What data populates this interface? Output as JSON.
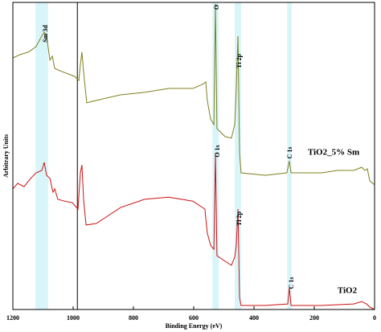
{
  "chart_data": {
    "type": "line",
    "x_label": "Binding Energy (eV)",
    "y_label": "Arbitrary Units",
    "xlim": [
      1200,
      0
    ],
    "ylim": [
      0,
      100
    ],
    "xticks": [
      1200,
      1000,
      800,
      600,
      400,
      200,
      0
    ],
    "reference_line": 986,
    "highlight_color": "#d8f6fa",
    "highlight_ranges": [
      [
        1125,
        1083
      ],
      [
        538,
        517
      ],
      [
        464,
        443
      ],
      [
        290,
        275
      ]
    ],
    "annotations": [
      "Sm 3d",
      "O",
      "Ti 2p",
      "O 1s",
      "Ti 2p",
      "C 1s",
      "C 1s"
    ],
    "series": [
      {
        "name": "TiO2_5% Sm",
        "color": "#7f7f1f",
        "x": [
          1200,
          1176,
          1149,
          1123,
          1109,
          1096,
          1088,
          1077,
          1069,
          1061,
          1043,
          1016,
          995,
          981,
          976,
          971,
          965,
          955,
          923,
          843,
          763,
          683,
          603,
          571,
          560,
          555,
          544,
          533,
          528,
          523,
          496,
          475,
          464,
          459,
          453,
          448,
          443,
          363,
          291,
          283,
          277,
          176,
          123,
          69,
          43,
          32,
          24,
          16,
          0
        ],
        "values": [
          81.9,
          83.0,
          83.8,
          85.6,
          88.2,
          90.3,
          89.0,
          81.2,
          82.5,
          78.5,
          77.7,
          76.7,
          75.9,
          74.6,
          79.8,
          83.8,
          77.2,
          67.3,
          68.1,
          69.9,
          70.7,
          72.0,
          72.0,
          73.3,
          74.1,
          68.1,
          62.0,
          60.2,
          99.5,
          58.9,
          56.3,
          55.8,
          60.2,
          72.0,
          89.0,
          51.0,
          44.5,
          43.7,
          44.5,
          48.4,
          44.5,
          44.5,
          45.3,
          45.3,
          46.3,
          45.3,
          45.8,
          41.9,
          40.6
        ]
      },
      {
        "name": "TiO2",
        "color": "#cc1111",
        "x": [
          1200,
          1184,
          1163,
          1141,
          1123,
          1104,
          1096,
          1088,
          1077,
          1067,
          1061,
          1051,
          1029,
          1003,
          984,
          976,
          971,
          965,
          957,
          923,
          843,
          763,
          683,
          603,
          563,
          555,
          544,
          533,
          528,
          523,
          496,
          475,
          464,
          459,
          453,
          448,
          443,
          363,
          288,
          283,
          277,
          176,
          69,
          43,
          27,
          16,
          0
        ],
        "values": [
          39.3,
          41.1,
          40.0,
          42.7,
          44.5,
          45.3,
          47.9,
          43.7,
          42.7,
          38.2,
          39.3,
          35.9,
          35.3,
          34.8,
          32.7,
          44.5,
          47.1,
          35.3,
          27.5,
          28.0,
          33.2,
          35.9,
          36.6,
          35.3,
          32.7,
          24.9,
          20.9,
          19.6,
          51.0,
          17.5,
          15.7,
          14.4,
          17.0,
          20.9,
          32.7,
          3.9,
          1.3,
          1.3,
          1.8,
          7.1,
          1.3,
          1.3,
          1.8,
          2.6,
          1.8,
          0.8,
          0
        ]
      }
    ]
  }
}
